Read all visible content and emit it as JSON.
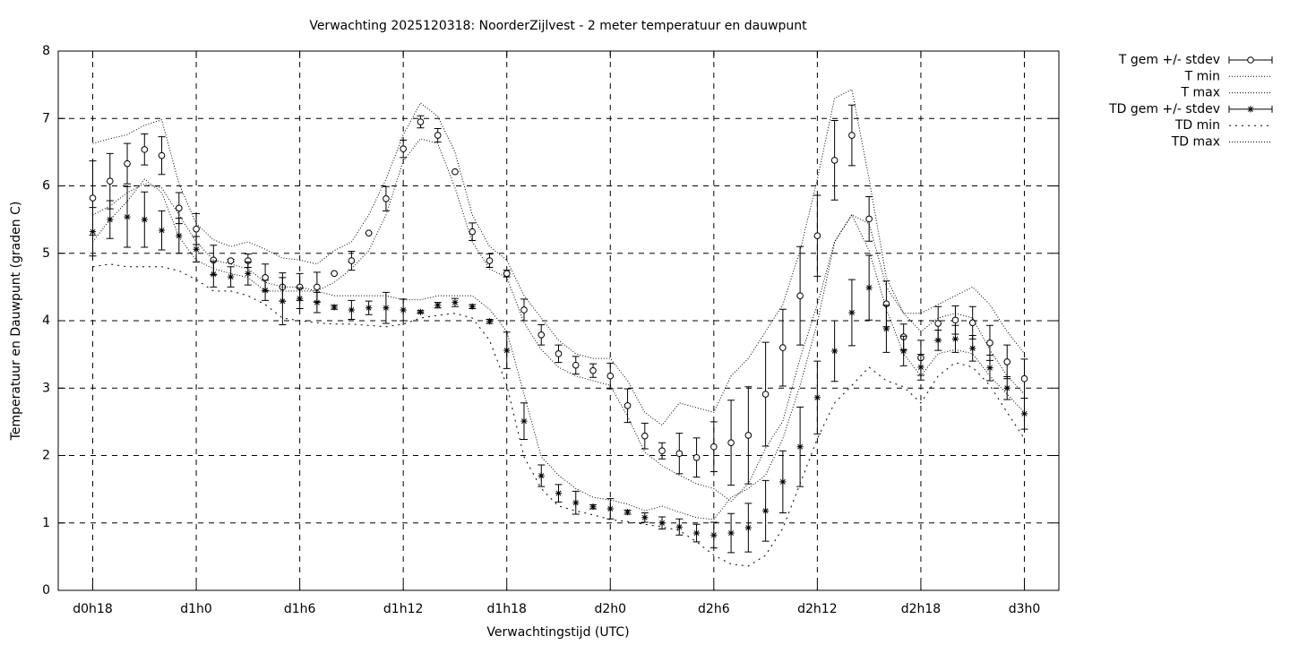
{
  "chart_data": {
    "type": "errorbar-line",
    "title": "Verwachting 2025120318: NoorderZijlvest - 2 meter temperatuur en dauwpunt",
    "xlabel": "Verwachtingstijd (UTC)",
    "ylabel": "Temperatuur en Dauwpunt (graden C)",
    "x": [
      18,
      19,
      20,
      21,
      22,
      23,
      24,
      25,
      26,
      27,
      28,
      29,
      30,
      31,
      32,
      33,
      34,
      35,
      36,
      37,
      38,
      39,
      40,
      41,
      42,
      43,
      44,
      45,
      46,
      47,
      48,
      49,
      50,
      51,
      52,
      53,
      54,
      55,
      56,
      57,
      58,
      59,
      60,
      61,
      62,
      63,
      64,
      65,
      66,
      67,
      68,
      69,
      70,
      71,
      72
    ],
    "xlim": [
      16,
      74
    ],
    "xticks": [
      {
        "value": 18,
        "label": "d0h18"
      },
      {
        "value": 24,
        "label": "d1h0"
      },
      {
        "value": 30,
        "label": "d1h6"
      },
      {
        "value": 36,
        "label": "d1h12"
      },
      {
        "value": 42,
        "label": "d1h18"
      },
      {
        "value": 48,
        "label": "d2h0"
      },
      {
        "value": 54,
        "label": "d2h6"
      },
      {
        "value": 60,
        "label": "d2h12"
      },
      {
        "value": 66,
        "label": "d2h18"
      },
      {
        "value": 72,
        "label": "d3h0"
      }
    ],
    "ylim": [
      0,
      8
    ],
    "yticks": [
      0,
      1,
      2,
      3,
      4,
      5,
      6,
      7,
      8
    ],
    "grid": true,
    "legend": "outside-right-top",
    "series": [
      {
        "name": "T gem +/- stdev",
        "style": "errorbars",
        "marker": "circle",
        "color": "#000000",
        "values": [
          5.82,
          6.07,
          6.33,
          6.54,
          6.45,
          5.67,
          5.36,
          4.9,
          4.89,
          4.89,
          4.64,
          4.5,
          4.5,
          4.5,
          4.7,
          4.89,
          5.3,
          5.81,
          6.55,
          6.95,
          6.75,
          6.21,
          5.32,
          4.89,
          4.7,
          4.16,
          3.79,
          3.51,
          3.34,
          3.26,
          3.18,
          2.74,
          2.29,
          2.07,
          2.03,
          1.97,
          2.13,
          2.19,
          2.3,
          2.91,
          3.6,
          4.37,
          5.26,
          6.38,
          6.75,
          5.51,
          4.25,
          3.76,
          3.45,
          3.96,
          4.01,
          3.97,
          3.67,
          3.39,
          3.14
        ],
        "errors": [
          0.55,
          0.41,
          0.3,
          0.23,
          0.28,
          0.23,
          0.23,
          0.22,
          0.02,
          0.1,
          0.2,
          0.21,
          0.2,
          0.22,
          0,
          0.14,
          0,
          0.18,
          0.13,
          0.09,
          0.1,
          0,
          0.13,
          0.1,
          0.05,
          0.16,
          0.15,
          0.13,
          0.13,
          0.1,
          0.19,
          0.25,
          0.19,
          0.12,
          0.3,
          0.29,
          0.37,
          0.63,
          0.72,
          0.77,
          0.57,
          0.73,
          0.6,
          0.59,
          0.45,
          0.33,
          0.34,
          0.19,
          0.26,
          0.25,
          0.21,
          0.24,
          0.26,
          0.25,
          0.29
        ]
      },
      {
        "name": "T min",
        "style": "dotted",
        "dash": "1,2",
        "color": "#000000",
        "values": [
          5.17,
          5.5,
          5.77,
          6.1,
          5.9,
          5.24,
          4.9,
          4.77,
          4.7,
          4.64,
          4.44,
          4.44,
          4.44,
          4.44,
          4.57,
          4.77,
          5.04,
          5.57,
          6.37,
          6.7,
          6.63,
          5.97,
          5.17,
          4.77,
          4.64,
          3.97,
          3.57,
          3.31,
          3.18,
          3.11,
          3.04,
          2.58,
          2.05,
          1.85,
          1.71,
          1.58,
          1.51,
          1.32,
          1.58,
          2.11,
          2.51,
          3.44,
          4.24,
          5.17,
          5.57,
          5.04,
          4.17,
          3.51,
          3.18,
          3.51,
          3.57,
          3.51,
          3.18,
          2.91,
          2.64
        ]
      },
      {
        "name": "T max",
        "style": "dotted",
        "dash": "1,2",
        "color": "#000000",
        "values": [
          6.63,
          6.7,
          6.76,
          6.9,
          6.98,
          6.03,
          5.44,
          5.2,
          5.1,
          5.17,
          5.06,
          4.93,
          4.9,
          4.84,
          5.04,
          5.17,
          5.57,
          6.1,
          6.76,
          7.23,
          7.03,
          6.5,
          5.57,
          5.1,
          4.9,
          4.37,
          4.04,
          3.71,
          3.51,
          3.44,
          3.44,
          3.11,
          2.64,
          2.45,
          2.78,
          2.71,
          2.64,
          3.18,
          3.44,
          3.84,
          4.24,
          5.04,
          6.1,
          7.3,
          7.43,
          6.1,
          4.64,
          4.11,
          4.11,
          4.24,
          4.37,
          4.5,
          4.24,
          3.84,
          3.51
        ]
      },
      {
        "name": "TD gem +/- stdev",
        "style": "errorbars",
        "marker": "star",
        "color": "#000000",
        "values": [
          5.32,
          5.5,
          5.54,
          5.5,
          5.34,
          5.26,
          5.06,
          4.69,
          4.65,
          4.7,
          4.45,
          4.29,
          4.33,
          4.27,
          4.2,
          4.16,
          4.19,
          4.19,
          4.16,
          4.13,
          4.23,
          4.27,
          4.21,
          3.99,
          3.56,
          2.51,
          1.7,
          1.44,
          1.3,
          1.24,
          1.21,
          1.16,
          1.08,
          1.0,
          0.94,
          0.85,
          0.82,
          0.85,
          0.93,
          1.18,
          1.61,
          2.13,
          2.86,
          3.55,
          4.12,
          4.49,
          3.88,
          3.55,
          3.31,
          3.71,
          3.73,
          3.59,
          3.3,
          3.0,
          2.62
        ],
        "errors": [
          0.36,
          0.28,
          0.45,
          0.41,
          0.29,
          0.26,
          0.19,
          0.19,
          0.15,
          0.17,
          0.15,
          0.35,
          0.15,
          0.15,
          0.03,
          0.14,
          0.1,
          0.23,
          0.16,
          0.02,
          0.04,
          0.06,
          0.03,
          0.03,
          0.27,
          0.27,
          0.16,
          0.13,
          0.17,
          0.03,
          0.15,
          0.03,
          0.07,
          0.09,
          0.12,
          0.13,
          0.19,
          0.29,
          0.36,
          0.45,
          0.46,
          0.59,
          0.54,
          0.45,
          0.49,
          0.48,
          0.35,
          0.22,
          0.19,
          0.15,
          0.2,
          0.19,
          0.19,
          0.17,
          0.23
        ]
      },
      {
        "name": "TD min",
        "style": "dotted",
        "dash": "2,5",
        "color": "#000000",
        "values": [
          4.8,
          4.84,
          4.8,
          4.8,
          4.8,
          4.74,
          4.61,
          4.44,
          4.44,
          4.37,
          4.24,
          4.04,
          4.0,
          3.97,
          3.95,
          3.95,
          3.93,
          3.91,
          3.95,
          4.04,
          4.08,
          4.11,
          4.04,
          3.71,
          3.04,
          1.98,
          1.51,
          1.25,
          1.18,
          1.12,
          1.05,
          1.02,
          0.98,
          0.94,
          0.89,
          0.72,
          0.52,
          0.39,
          0.36,
          0.52,
          0.92,
          1.58,
          2.25,
          2.78,
          3.04,
          3.31,
          3.11,
          3.02,
          2.78,
          3.18,
          3.38,
          3.31,
          3.04,
          2.64,
          2.25
        ]
      },
      {
        "name": "TD max",
        "style": "dotted",
        "dash": "1,2",
        "color": "#000000",
        "values": [
          5.57,
          5.7,
          5.9,
          6.03,
          5.97,
          5.57,
          5.17,
          4.9,
          4.84,
          4.77,
          4.57,
          4.5,
          4.5,
          4.44,
          4.37,
          4.37,
          4.37,
          4.37,
          4.31,
          4.31,
          4.37,
          4.37,
          4.37,
          4.17,
          3.84,
          2.91,
          1.98,
          1.71,
          1.51,
          1.38,
          1.34,
          1.28,
          1.18,
          1.25,
          1.16,
          1.08,
          1.05,
          1.38,
          1.51,
          1.71,
          2.25,
          3.04,
          3.97,
          5.17,
          5.57,
          5.44,
          4.5,
          4.11,
          3.84,
          4.04,
          4.11,
          4.04,
          3.57,
          3.18,
          2.91
        ]
      }
    ]
  }
}
